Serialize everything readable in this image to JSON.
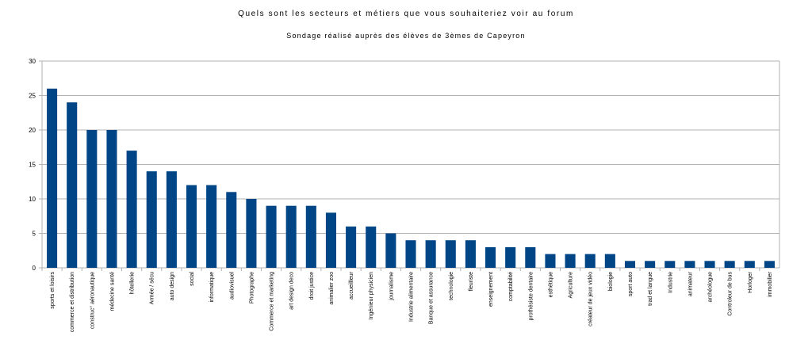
{
  "chart_data": {
    "type": "bar",
    "title": "Quels sont les secteurs et métiers que vous souhaiteriez voir au forum",
    "subtitle": "Sondage réalisé auprès des élèves de 3èmes de Capeyron",
    "xlabel": "",
    "ylabel": "",
    "ylim": [
      0,
      30
    ],
    "yticks": [
      0,
      5,
      10,
      15,
      20,
      25,
      30
    ],
    "grid": true,
    "legend": "none",
    "bar_color": "#004586",
    "grid_color": "#b3b3b3",
    "categories": [
      "sports et loisirs",
      "commerce et distribution",
      "construc° aéronautique",
      "médecine santé",
      "hôtellerie",
      "Armée / sécu",
      "auto design",
      "social",
      "informatique",
      "audiovisuel",
      "Photographe",
      "Commerce et marketing",
      "art design deco",
      "droit justice",
      "animalier zoo",
      "accueillleur",
      "Ingénieur physicien",
      "journalisme",
      "Industrie alimentaire",
      "Banque et assurance",
      "technologie",
      "fleuriste",
      "enseignement",
      "comptabilité",
      "prothésiste dentaire",
      "esthétique",
      "Agriculture",
      "créateur de jeux vidéo",
      "biologie",
      "sport auto",
      "trad et langue",
      "Industrie",
      "animateur",
      "archéologue",
      "Controleur de bus",
      "Horloger",
      "immobilier"
    ],
    "values": [
      26,
      24,
      20,
      20,
      17,
      14,
      14,
      12,
      12,
      11,
      10,
      9,
      9,
      9,
      8,
      6,
      6,
      5,
      4,
      4,
      4,
      4,
      3,
      3,
      3,
      2,
      2,
      2,
      2,
      1,
      1,
      1,
      1,
      1,
      1,
      1,
      1
    ]
  }
}
